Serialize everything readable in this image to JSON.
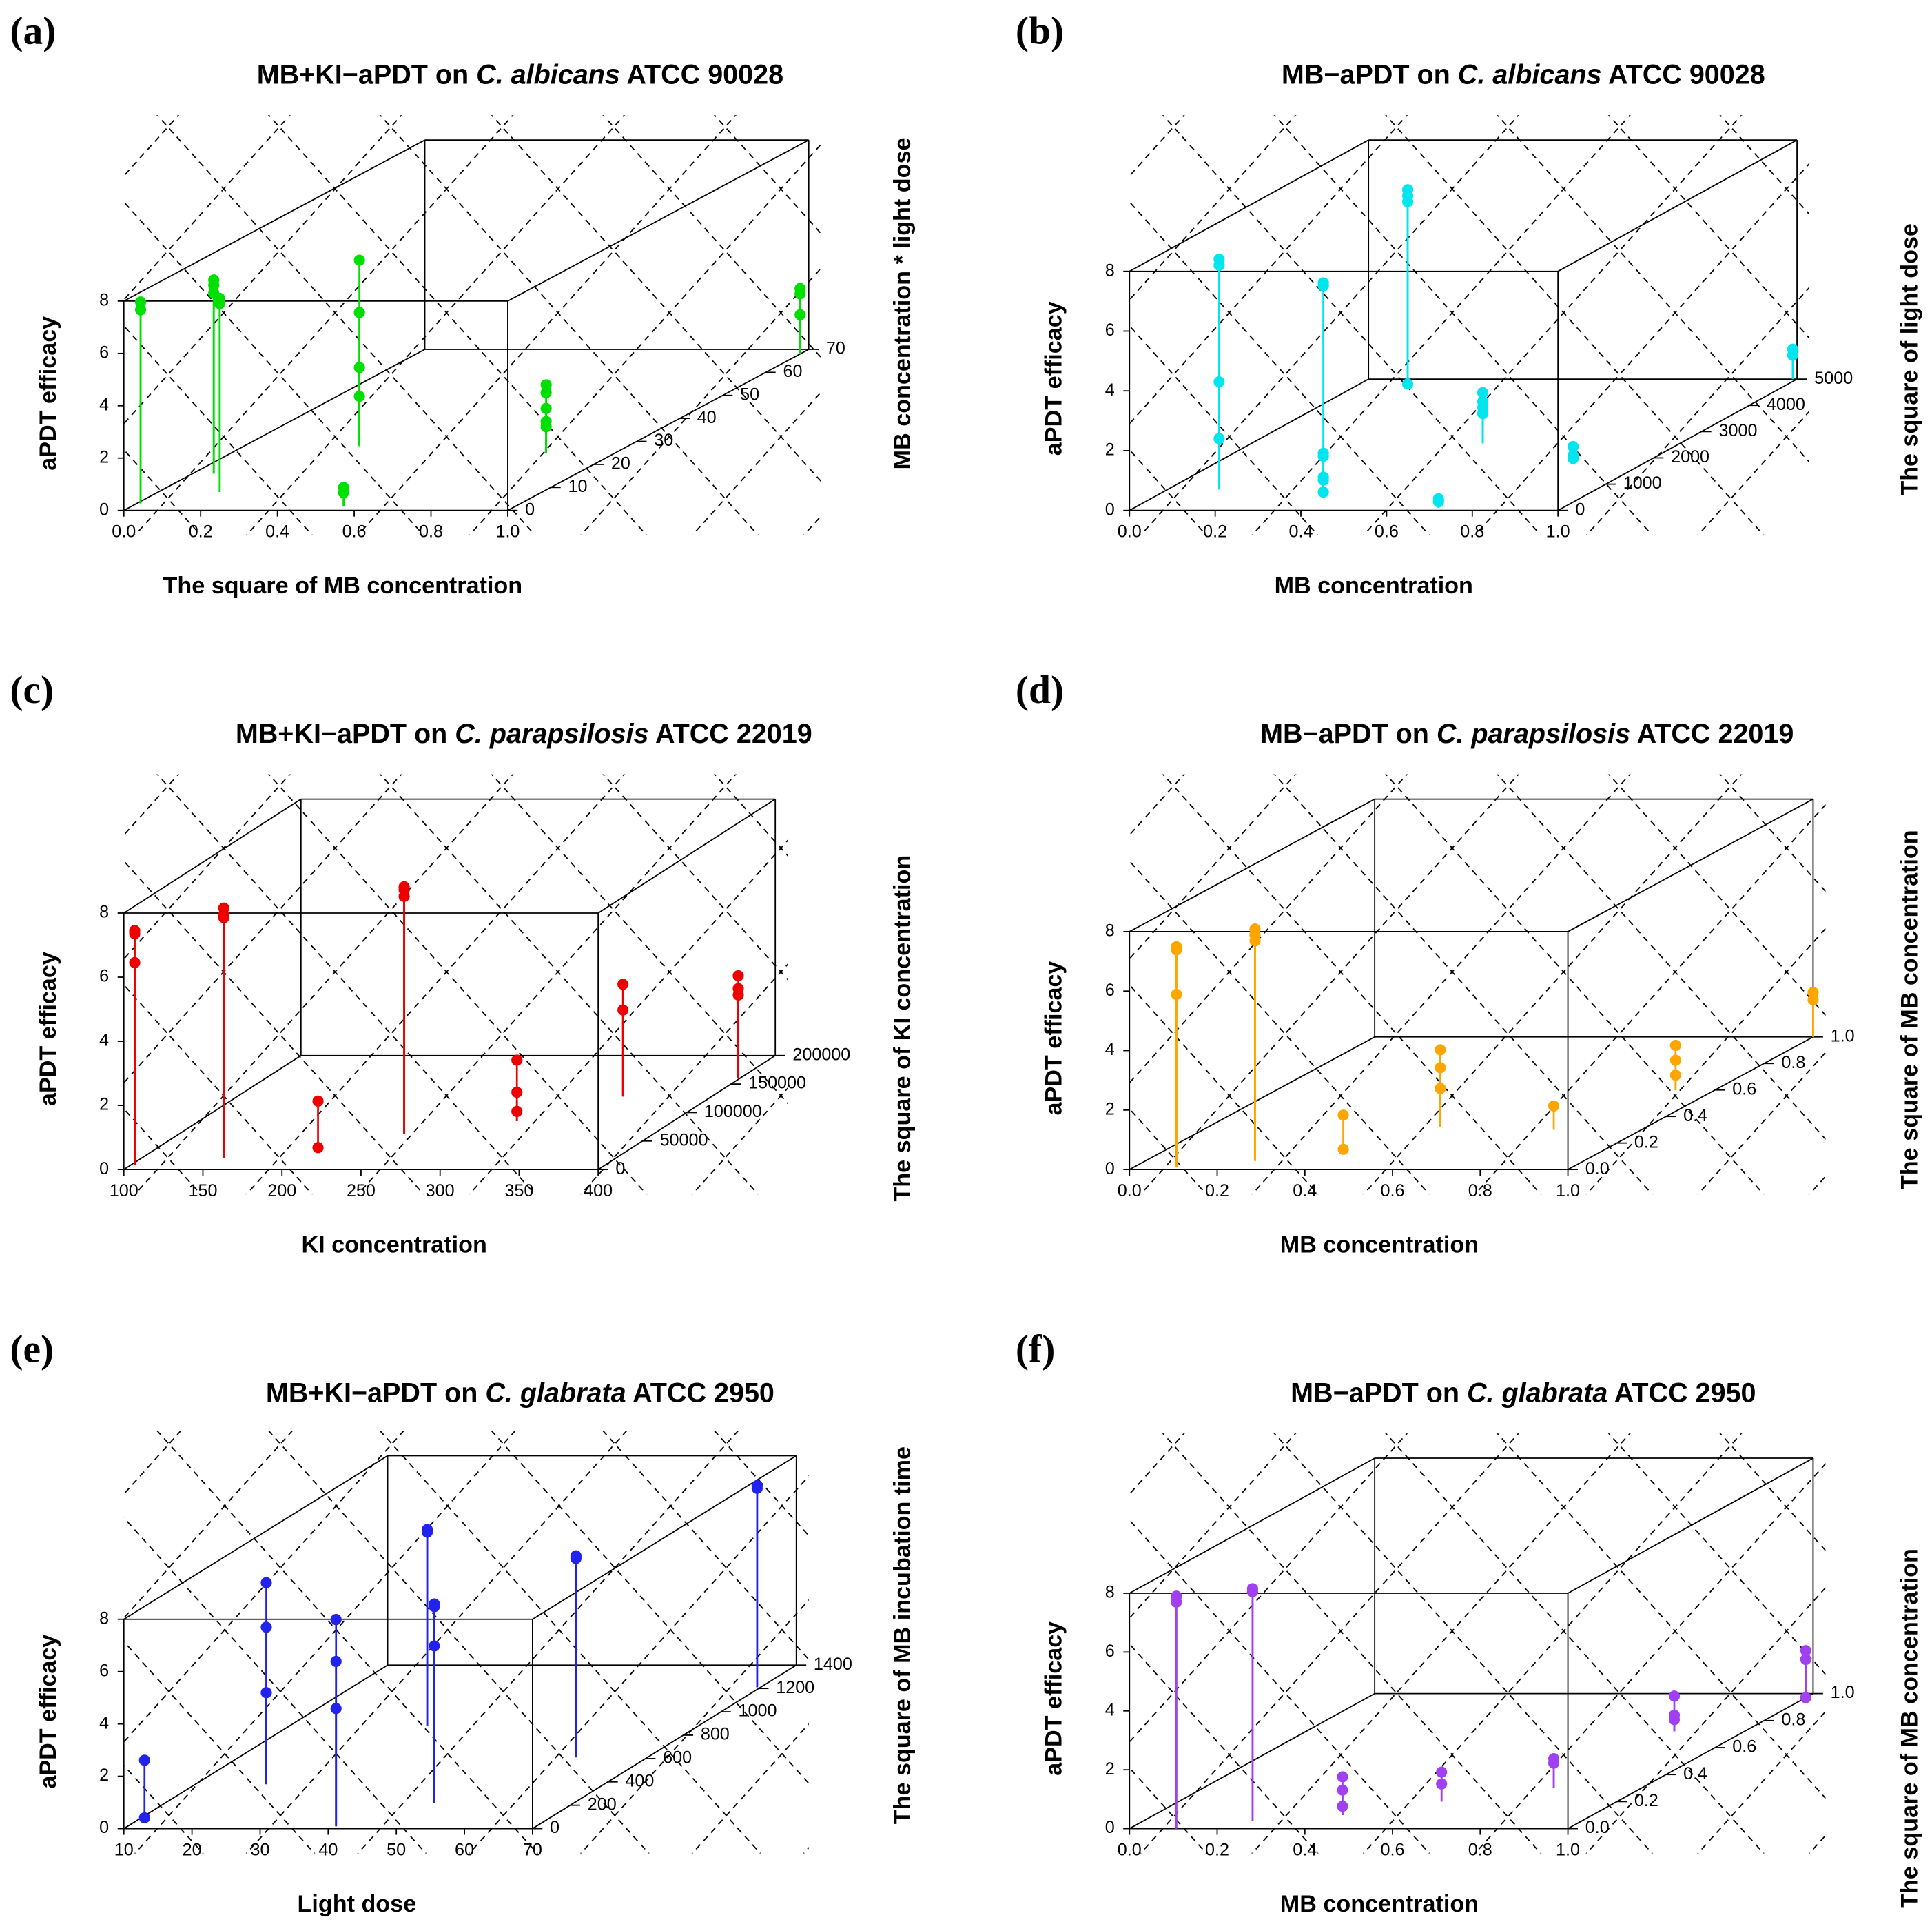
{
  "chart_data": [
    {
      "type": "scatter3d",
      "panel_label": "(a)",
      "title": [
        "MB+KI−aPDT on ",
        "C. albicans",
        " ATCC 90028"
      ],
      "xlabel": "The square of MB concentration",
      "ylabel": "MB concentration * light dose",
      "zlabel": "aPDT efficacy",
      "color": "#00e000",
      "xlim": [
        0,
        1
      ],
      "xticks": [
        {
          "value": 0,
          "label": "0.0"
        },
        {
          "value": 0.2,
          "label": "0.2"
        },
        {
          "value": 0.4,
          "label": "0.4"
        },
        {
          "value": 0.6,
          "label": "0.6"
        },
        {
          "value": 0.8,
          "label": "0.8"
        },
        {
          "value": 1,
          "label": "1.0"
        }
      ],
      "ylim": [
        0,
        70
      ],
      "yticks": [
        0,
        10,
        20,
        30,
        40,
        50,
        60,
        70
      ],
      "zlim": [
        0,
        8
      ],
      "zticks": [
        0,
        2,
        4,
        6,
        8
      ],
      "x": [
        0.01,
        0.01,
        0.055,
        0.055,
        0.055,
        0.16,
        0.16,
        0.3,
        0.3,
        0.3,
        0.3,
        0.55,
        0.55,
        0.82,
        0.82,
        0.82,
        0.82,
        0.82,
        1,
        1,
        1
      ],
      "y": [
        3,
        3,
        16,
        16,
        16,
        8,
        8,
        28,
        28,
        28,
        28,
        2,
        2,
        25,
        25,
        25,
        25,
        25,
        68,
        68,
        68
      ],
      "z": [
        7.4,
        7.7,
        7.4,
        7.2,
        6.9,
        7.4,
        7.2,
        7.1,
        5.1,
        3.0,
        1.9,
        0.7,
        0.5,
        2.6,
        2.3,
        1.7,
        1.2,
        1.0,
        2.5,
        2.3,
        1.5
      ]
    },
    {
      "type": "scatter3d",
      "panel_label": "(b)",
      "title": [
        "MB−aPDT on ",
        "C. albicans",
        " ATCC 90028"
      ],
      "xlabel": "MB concentration",
      "ylabel": "The square of light dose",
      "zlabel": "aPDT efficacy",
      "color": "#00e5ee",
      "xlim": [
        0,
        1
      ],
      "xticks": [
        {
          "value": 0,
          "label": "0.0"
        },
        {
          "value": 0.2,
          "label": "0.2"
        },
        {
          "value": 0.4,
          "label": "0.4"
        },
        {
          "value": 0.6,
          "label": "0.6"
        },
        {
          "value": 0.8,
          "label": "0.8"
        },
        {
          "value": 1,
          "label": "1.0"
        }
      ],
      "ylim": [
        0,
        5000
      ],
      "yticks": [
        0,
        1000,
        2000,
        3000,
        4000,
        5000
      ],
      "zlim": [
        0,
        8
      ],
      "zticks": [
        0,
        2,
        4,
        6,
        8
      ],
      "x": [
        0.12,
        0.12,
        0.12,
        0.12,
        0.4,
        0.4,
        0.4,
        0.4,
        0.4,
        0.4,
        0.4,
        0.125,
        0.125,
        0.125,
        0.125,
        0.71,
        0.71,
        0.54,
        0.54,
        0.54,
        0.54,
        0.84,
        0.84,
        0.84,
        0.99,
        0.99
      ],
      "y": [
        800,
        800,
        800,
        800,
        470,
        470,
        470,
        470,
        470,
        470,
        470,
        4700,
        4700,
        4700,
        4700,
        100,
        100,
        2550,
        2550,
        2550,
        2550,
        1750,
        1750,
        1750,
        5000,
        5000
      ],
      "z": [
        7.7,
        7.5,
        3.6,
        1.7,
        7.2,
        7.1,
        1.5,
        1.4,
        0.7,
        0.6,
        0.2,
        6.6,
        6.4,
        6.2,
        0.1,
        0.3,
        0.2,
        1.7,
        1.4,
        1.2,
        1.0,
        0.6,
        0.3,
        0.2,
        1.0,
        0.8
      ]
    },
    {
      "type": "scatter3d",
      "panel_label": "(c)",
      "title": [
        "MB+KI−aPDT on ",
        "C. parapsilosis",
        " ATCC 22019"
      ],
      "xlabel": "KI concentration",
      "ylabel": "The square of KI concentration",
      "zlabel": "aPDT efficacy",
      "color": "#ee0000",
      "xlim": [
        100,
        400
      ],
      "xticks": [
        100,
        150,
        200,
        250,
        300,
        350,
        400
      ],
      "ylim": [
        0,
        200000
      ],
      "yticks": [
        0,
        50000,
        100000,
        150000,
        200000
      ],
      "zlim": [
        0,
        8
      ],
      "zticks": [
        0,
        2,
        4,
        6,
        8
      ],
      "x": [
        102,
        102,
        102,
        152,
        152,
        152,
        206,
        206,
        242,
        242,
        242,
        301,
        301,
        301,
        344,
        344,
        399,
        399,
        399
      ],
      "y": [
        8700,
        8700,
        8700,
        20000,
        20000,
        20000,
        30000,
        30000,
        63000,
        63000,
        63000,
        85000,
        85000,
        85000,
        128000,
        128000,
        160000,
        160000,
        160000
      ],
      "z": [
        7.3,
        7.2,
        6.3,
        7.8,
        7.6,
        7.5,
        1.6,
        0.15,
        7.7,
        7.6,
        7.4,
        1.9,
        0.9,
        0.3,
        3.5,
        2.7,
        3.2,
        2.8,
        2.6
      ]
    },
    {
      "type": "scatter3d",
      "panel_label": "(d)",
      "title": [
        "MB−aPDT on ",
        "C. parapsilosis",
        " ATCC 22019"
      ],
      "xlabel": "MB concentration",
      "ylabel": "The square of MB concentration",
      "zlabel": "aPDT efficacy",
      "color": "#ffa500",
      "xlim": [
        0,
        1
      ],
      "xticks": [
        {
          "value": 0,
          "label": "0.0"
        },
        {
          "value": 0.2,
          "label": "0.2"
        },
        {
          "value": 0.4,
          "label": "0.4"
        },
        {
          "value": 0.6,
          "label": "0.6"
        },
        {
          "value": 0.8,
          "label": "0.8"
        },
        {
          "value": 1,
          "label": "1.0"
        }
      ],
      "ylim": [
        0,
        1
      ],
      "yticks": [
        {
          "value": 0,
          "label": "0.0"
        },
        {
          "value": 0.2,
          "label": "0.2"
        },
        {
          "value": 0.4,
          "label": "0.4"
        },
        {
          "value": 0.6,
          "label": "0.6"
        },
        {
          "value": 0.8,
          "label": "0.8"
        },
        {
          "value": 1,
          "label": "1.0"
        }
      ],
      "zlim": [
        0,
        8
      ],
      "zticks": [
        0,
        2,
        4,
        6,
        8
      ],
      "x": [
        0.096,
        0.096,
        0.096,
        0.25,
        0.25,
        0.25,
        0.415,
        0.415,
        0.53,
        0.53,
        0.53,
        0.8,
        0.91,
        0.91,
        0.91,
        1,
        1
      ],
      "y": [
        0.02,
        0.02,
        0.02,
        0.065,
        0.065,
        0.065,
        0.13,
        0.13,
        0.32,
        0.32,
        0.32,
        0.3,
        0.6,
        0.6,
        0.6,
        1,
        1
      ],
      "z": [
        7.4,
        7.3,
        5.8,
        7.8,
        7.6,
        7.4,
        1.25,
        0.1,
        2.6,
        2.0,
        1.3,
        0.8,
        1.5,
        1.0,
        0.5,
        1.5,
        1.25
      ]
    },
    {
      "type": "scatter3d",
      "panel_label": "(e)",
      "title": [
        "MB+KI−aPDT on ",
        "C. glabrata",
        " ATCC 2950"
      ],
      "xlabel": "Light dose",
      "ylabel": "The square of MB incubation time",
      "zlabel": "aPDT efficacy",
      "color": "#2222ee",
      "xlim": [
        10,
        70
      ],
      "xticks": [
        10,
        20,
        30,
        40,
        50,
        60,
        70
      ],
      "ylim": [
        0,
        1400
      ],
      "yticks": [
        0,
        200,
        400,
        600,
        800,
        1000,
        1200,
        1400
      ],
      "zlim": [
        0,
        8
      ],
      "zticks": [
        0,
        2,
        4,
        6,
        8
      ],
      "x": [
        11.1,
        11.1,
        20.4,
        20.4,
        20.4,
        40.6,
        40.6,
        40.6,
        30.2,
        30.2,
        49.5,
        49.5,
        49.5,
        59.5,
        59.5,
        69.5,
        69.5
      ],
      "y": [
        70,
        70,
        380,
        380,
        380,
        20,
        20,
        20,
        880,
        880,
        220,
        220,
        220,
        610,
        610,
        1210,
        1210
      ],
      "z": [
        2.3,
        0.1,
        7.7,
        6.0,
        3.5,
        7.9,
        6.3,
        4.5,
        7.5,
        7.4,
        7.6,
        7.5,
        6.0,
        7.7,
        7.6,
        7.7,
        7.6
      ]
    },
    {
      "type": "scatter3d",
      "panel_label": "(f)",
      "title": [
        "MB−aPDT on ",
        "C. glabrata",
        " ATCC 2950"
      ],
      "xlabel": "MB concentration",
      "ylabel": "The square of MB concentration",
      "zlabel": "aPDT efficacy",
      "color": "#a040f0",
      "xlim": [
        0,
        1
      ],
      "xticks": [
        {
          "value": 0,
          "label": "0.0"
        },
        {
          "value": 0.2,
          "label": "0.2"
        },
        {
          "value": 0.4,
          "label": "0.4"
        },
        {
          "value": 0.6,
          "label": "0.6"
        },
        {
          "value": 0.8,
          "label": "0.8"
        },
        {
          "value": 1,
          "label": "1.0"
        }
      ],
      "ylim": [
        0,
        1
      ],
      "yticks": [
        {
          "value": 0,
          "label": "0.0"
        },
        {
          "value": 0.2,
          "label": "0.2"
        },
        {
          "value": 0.4,
          "label": "0.4"
        },
        {
          "value": 0.6,
          "label": "0.6"
        },
        {
          "value": 0.8,
          "label": "0.8"
        },
        {
          "value": 1,
          "label": "1.0"
        }
      ],
      "zlim": [
        0,
        8
      ],
      "zticks": [
        0,
        2,
        4,
        6,
        8
      ],
      "x": [
        0.107,
        0.107,
        0.25,
        0.25,
        0.43,
        0.43,
        0.43,
        0.6,
        0.6,
        0.8,
        0.8,
        0.84,
        0.84,
        0.84,
        1,
        1,
        1
      ],
      "y": [
        0,
        0,
        0.055,
        0.055,
        0.1,
        0.1,
        0.1,
        0.2,
        0.2,
        0.3,
        0.3,
        0.72,
        0.72,
        0.72,
        0.97,
        0.97,
        0.97
      ],
      "z": [
        7.9,
        7.7,
        7.9,
        7.8,
        1.3,
        0.85,
        0.3,
        1.0,
        0.6,
        1.0,
        0.85,
        1.2,
        0.55,
        0.4,
        1.6,
        1.3,
        0.0
      ]
    }
  ]
}
